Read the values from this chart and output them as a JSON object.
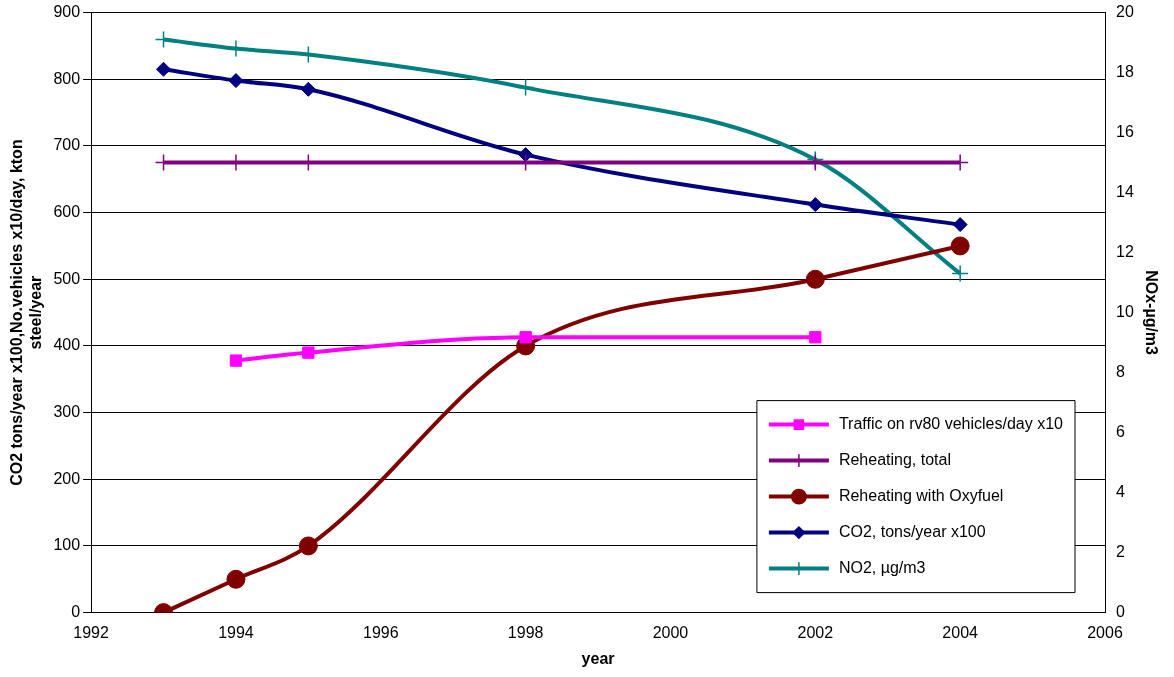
{
  "chart_data": {
    "type": "line",
    "xlabel": "year",
    "ylabel": "CO2 tons/year x100,No.vehicles x10/day, kton steel/year",
    "y2label": "NOx-µg/m3",
    "xlim": [
      1992,
      2006
    ],
    "xticks": [
      1992,
      1994,
      1996,
      1998,
      2000,
      2002,
      2004,
      2006
    ],
    "ylim": [
      0,
      900
    ],
    "yticks": [
      0,
      100,
      200,
      300,
      400,
      500,
      600,
      700,
      800,
      900
    ],
    "y2lim": [
      0,
      20
    ],
    "y2ticks": [
      0,
      2,
      4,
      6,
      8,
      10,
      12,
      14,
      16,
      18,
      20
    ],
    "grid": "y",
    "legend": "bottom right",
    "series": [
      {
        "name": "Traffic on rv80 vehicles/day x10",
        "color": "#ff00ff",
        "marker": "square",
        "x": [
          1994,
          1995,
          1998,
          2002
        ],
        "values": [
          378,
          390,
          413,
          413
        ]
      },
      {
        "name": "Reheating, total",
        "color": "#800080",
        "marker": "cross",
        "x": [
          1993,
          1994,
          1995,
          1998,
          2002,
          2004
        ],
        "values": [
          675,
          675,
          675,
          675,
          675,
          675
        ]
      },
      {
        "name": "Reheating with Oxyfuel",
        "color": "#800000",
        "marker": "circle",
        "x": [
          1993,
          1994,
          1995,
          1998,
          2002,
          2004
        ],
        "values": [
          0,
          50,
          100,
          400,
          500,
          550
        ]
      },
      {
        "name": "CO2, tons/year x100",
        "color": "#000080",
        "marker": "diamond",
        "x": [
          1993,
          1994,
          1995,
          1998,
          2002,
          2004
        ],
        "values": [
          815,
          798,
          785,
          687,
          612,
          582
        ]
      },
      {
        "name": "NO2, µg/m3",
        "color": "#008080",
        "marker": "cross",
        "axis": "y2",
        "x": [
          1993,
          1994,
          1995,
          1998,
          2002,
          2004
        ],
        "values": [
          19.1,
          18.8,
          18.6,
          17.5,
          15.1,
          11.3
        ]
      }
    ]
  }
}
